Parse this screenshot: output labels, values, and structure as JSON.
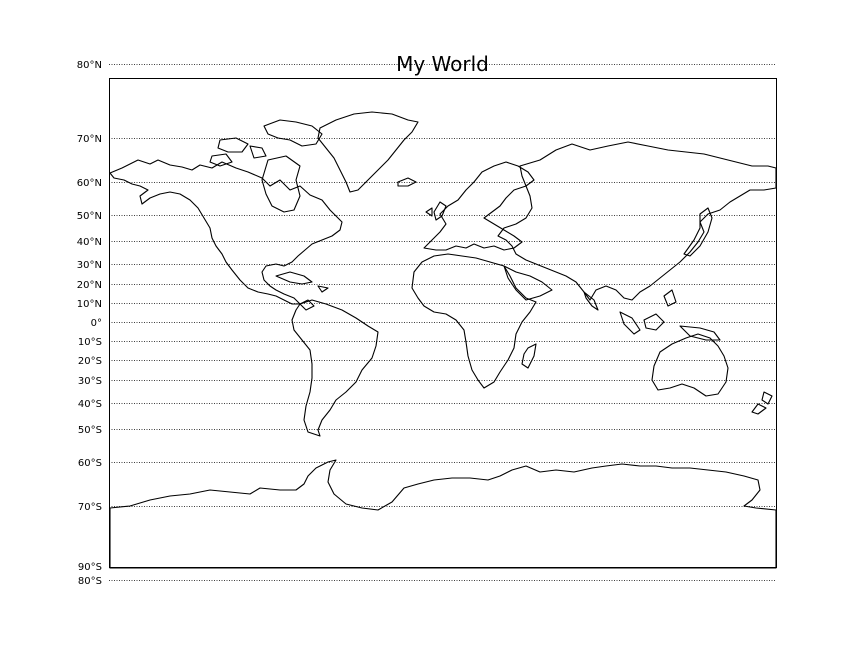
{
  "title": "My World",
  "map": {
    "projection": "Mercator",
    "graticule": {
      "parallels": [
        80,
        70,
        60,
        50,
        40,
        30,
        20,
        10,
        0,
        -10,
        -20,
        -30,
        -40,
        -50,
        -60,
        -70,
        -80
      ],
      "labels": [
        "80°N",
        "70°N",
        "60°N",
        "50°N",
        "40°N",
        "30°N",
        "20°N",
        "10°N",
        "0°",
        "10°S",
        "20°S",
        "30°S",
        "40°S",
        "50°S",
        "60°S",
        "70°S",
        "80°S"
      ],
      "line_style": "dotted"
    },
    "bottom_label": "90°S",
    "coastline_color": "#000000",
    "background_color": "#ffffff"
  }
}
